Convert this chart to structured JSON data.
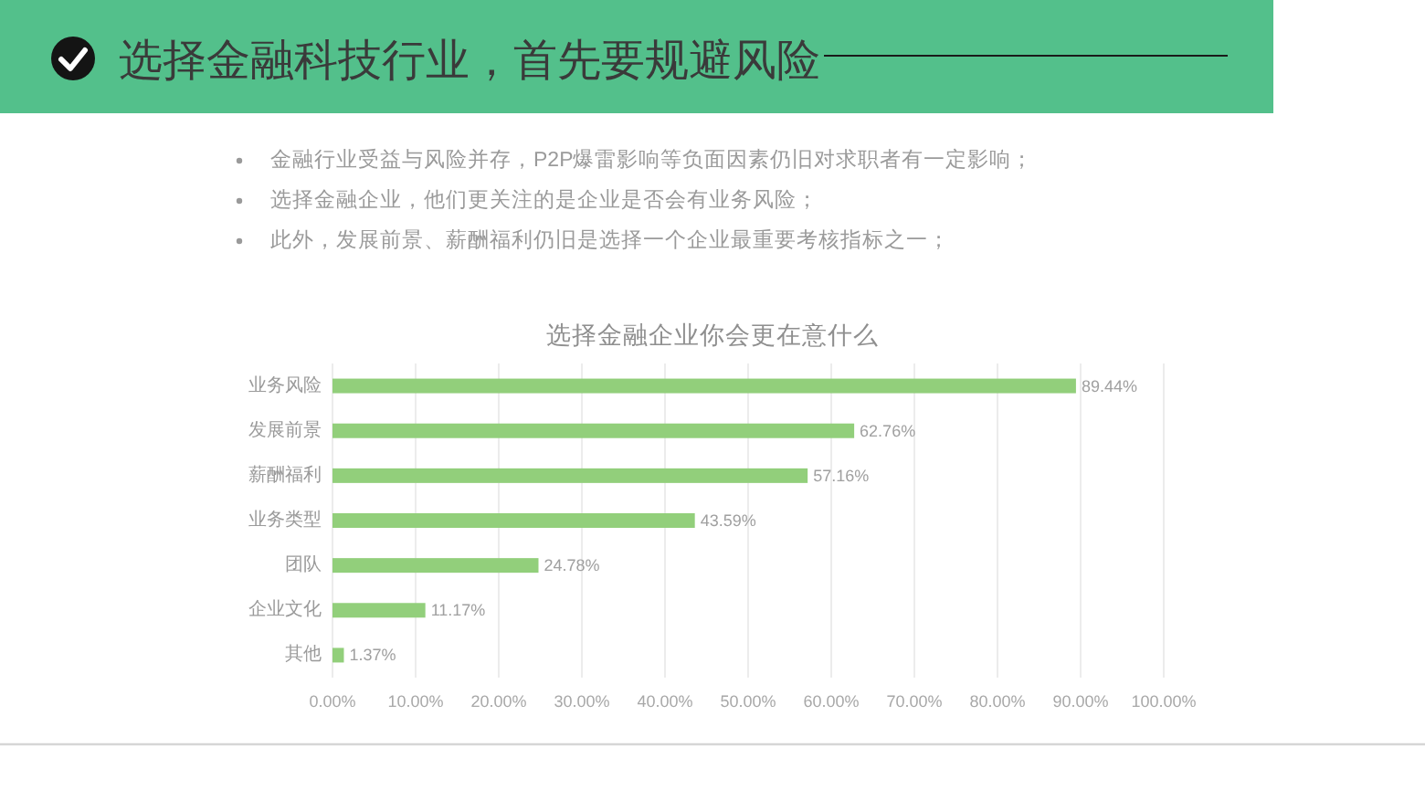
{
  "chart_data": {
    "type": "bar",
    "orientation": "horizontal",
    "title": "选择金融企业你会更在意什么",
    "categories": [
      "业务风险",
      "发展前景",
      "薪酬福利",
      "业务类型",
      "团队",
      "企业文化",
      "其他"
    ],
    "values": [
      89.44,
      62.76,
      57.16,
      43.59,
      24.78,
      11.17,
      1.37
    ],
    "value_labels": [
      "89.44%",
      "62.76%",
      "57.16%",
      "43.59%",
      "24.78%",
      "11.17%",
      "1.37%"
    ],
    "color": "#92cf7b",
    "xlim": [
      0,
      100
    ],
    "xticks": [
      {
        "value": 0,
        "label": "0.00%"
      },
      {
        "value": 10,
        "label": "10.00%"
      },
      {
        "value": 20,
        "label": "20.00%"
      },
      {
        "value": 30,
        "label": "30.00%"
      },
      {
        "value": 40,
        "label": "40.00%"
      },
      {
        "value": 50,
        "label": "50.00%"
      },
      {
        "value": 60,
        "label": "60.00%"
      },
      {
        "value": 70,
        "label": "70.00%"
      },
      {
        "value": 80,
        "label": "80.00%"
      },
      {
        "value": 90,
        "label": "90.00%"
      },
      {
        "value": 100,
        "label": "100.00%"
      }
    ],
    "grid": "x",
    "annotations": [
      "选择金融科技行业，首先要规避风险",
      "金融行业受益与风险并存，P2P爆雷影响等负面因素仍旧对求职者有一定影响；",
      "选择金融企业，他们更关注的是企业是否会有业务风险；",
      "此外，发展前景、薪酬福利仍旧是选择一个企业最重要考核指标之一；"
    ]
  }
}
